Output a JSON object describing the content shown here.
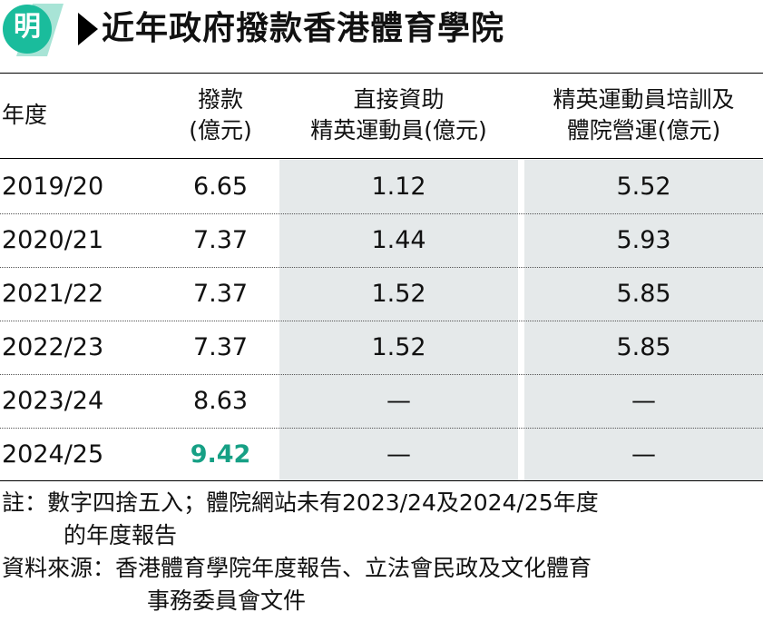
{
  "header": {
    "logo_char": "明",
    "title": "近年政府撥款香港體育學院"
  },
  "colors": {
    "logo_green": "#1abc9c",
    "logo_green_light": "#a8e4d6",
    "highlight": "#16a085",
    "shade": "#e5e9ea"
  },
  "chart_data": {
    "type": "table",
    "title": "近年政府撥款香港體育學院",
    "columns": [
      {
        "key": "year",
        "lines": [
          "年度"
        ]
      },
      {
        "key": "funding",
        "lines": [
          "撥款",
          "(億元)"
        ]
      },
      {
        "key": "direct",
        "lines": [
          "直接資助",
          "精英運動員(億元)"
        ]
      },
      {
        "key": "training",
        "lines": [
          "精英運動員培訓及",
          "體院營運(億元)"
        ]
      }
    ],
    "rows": [
      {
        "year": "2019/20",
        "funding": "6.65",
        "direct": "1.12",
        "training": "5.52"
      },
      {
        "year": "2020/21",
        "funding": "7.37",
        "direct": "1.44",
        "training": "5.93"
      },
      {
        "year": "2021/22",
        "funding": "7.37",
        "direct": "1.52",
        "training": "5.85"
      },
      {
        "year": "2022/23",
        "funding": "7.37",
        "direct": "1.52",
        "training": "5.85"
      },
      {
        "year": "2023/24",
        "funding": "8.63",
        "direct": "—",
        "training": "—"
      },
      {
        "year": "2024/25",
        "funding": "9.42",
        "direct": "—",
        "training": "—"
      }
    ],
    "highlight": {
      "row": 5,
      "column": "funding"
    }
  },
  "notes": {
    "note_line1": "註：數字四捨五入；體院網站未有2023/24及2024/25年度",
    "note_line2": "的年度報告",
    "source_line1": "資料來源：香港體育學院年度報告、立法會民政及文化體育",
    "source_line2": "事務委員會文件"
  }
}
